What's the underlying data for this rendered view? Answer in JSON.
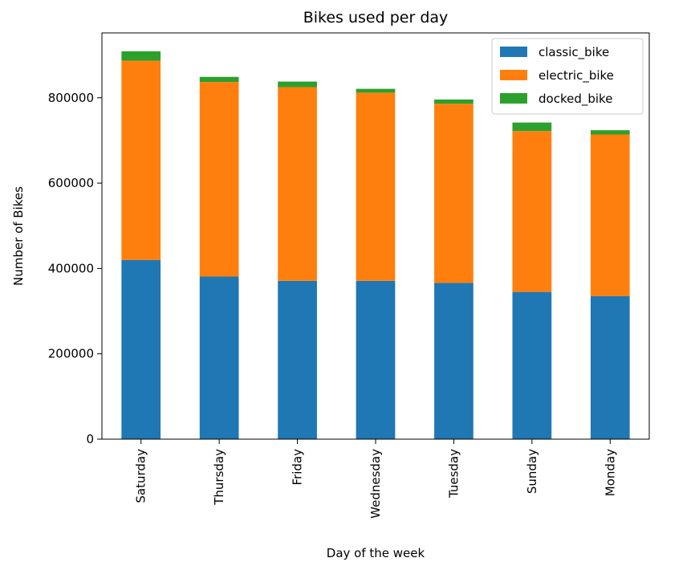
{
  "chart_data": {
    "type": "bar",
    "stacked": true,
    "title": "Bikes used per day",
    "xlabel": "Day of the week",
    "ylabel": "Number of Bikes",
    "categories": [
      "Saturday",
      "Thursday",
      "Friday",
      "Wednesday",
      "Tuesday",
      "Sunday",
      "Monday"
    ],
    "series": [
      {
        "name": "classic_bike",
        "color": "#1f77b4",
        "values": [
          420000,
          381000,
          371000,
          371000,
          366000,
          345000,
          335000
        ]
      },
      {
        "name": "electric_bike",
        "color": "#ff7f0e",
        "values": [
          467000,
          456000,
          454000,
          441000,
          420000,
          377000,
          379000
        ]
      },
      {
        "name": "docked_bike",
        "color": "#2ca02c",
        "values": [
          22000,
          12000,
          13000,
          9000,
          10000,
          20000,
          10000
        ]
      }
    ],
    "ylim": [
      0,
      952000
    ],
    "yticks": [
      0,
      200000,
      400000,
      600000,
      800000
    ],
    "ytick_labels": [
      "0",
      "200000",
      "400000",
      "600000",
      "800000"
    ],
    "legend_position": "upper right",
    "grid": false
  }
}
